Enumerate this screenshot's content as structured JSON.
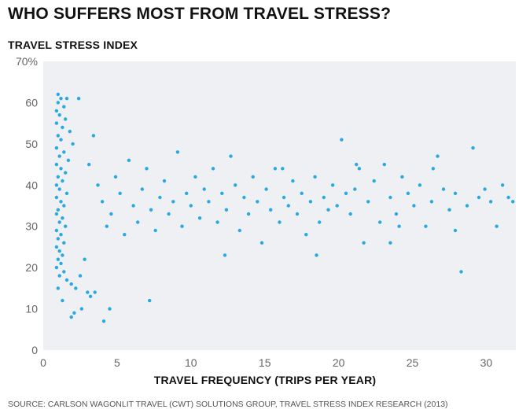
{
  "title": "WHO SUFFERS MOST FROM TRAVEL STRESS?",
  "source": "SOURCE: CARLSON WAGONLIT TRAVEL (CWT) SOLUTIONS GROUP, TRAVEL STRESS INDEX RESEARCH (2013)",
  "chart_data": {
    "type": "scatter",
    "title": "WHO SUFFERS MOST FROM TRAVEL STRESS?",
    "xlabel": "TRAVEL FREQUENCY (TRIPS PER YEAR)",
    "ylabel": "TRAVEL STRESS INDEX",
    "xlim": [
      0,
      32
    ],
    "ylim": [
      0,
      70
    ],
    "x_ticks": [
      "0",
      "5",
      "10",
      "15",
      "20",
      "25",
      "30"
    ],
    "y_ticks": [
      "0",
      "10",
      "20",
      "30",
      "40",
      "50",
      "60",
      "70%"
    ],
    "grid": false,
    "legend": "none",
    "colors": {
      "point": "#29a9e1",
      "plot_background": "#eef0f3"
    },
    "points": [
      [
        1.0,
        62
      ],
      [
        1.2,
        61
      ],
      [
        1.6,
        61
      ],
      [
        2.4,
        61
      ],
      [
        1.0,
        60
      ],
      [
        1.4,
        59
      ],
      [
        0.9,
        58
      ],
      [
        1.1,
        57
      ],
      [
        1.5,
        56
      ],
      [
        0.9,
        55
      ],
      [
        1.3,
        54
      ],
      [
        1.8,
        53
      ],
      [
        1.0,
        52
      ],
      [
        1.2,
        51
      ],
      [
        2.0,
        50
      ],
      [
        0.9,
        49
      ],
      [
        1.4,
        48
      ],
      [
        1.1,
        47
      ],
      [
        1.7,
        46
      ],
      [
        0.9,
        45
      ],
      [
        1.2,
        44
      ],
      [
        1.5,
        43
      ],
      [
        1.0,
        42
      ],
      [
        1.3,
        41
      ],
      [
        0.9,
        40
      ],
      [
        1.1,
        39
      ],
      [
        1.6,
        38
      ],
      [
        0.9,
        37
      ],
      [
        1.2,
        36
      ],
      [
        1.4,
        35
      ],
      [
        1.0,
        34
      ],
      [
        0.9,
        33
      ],
      [
        1.3,
        32
      ],
      [
        1.1,
        31
      ],
      [
        1.5,
        30
      ],
      [
        0.9,
        29
      ],
      [
        1.2,
        28
      ],
      [
        1.0,
        27
      ],
      [
        1.4,
        26
      ],
      [
        0.9,
        25
      ],
      [
        1.1,
        24
      ],
      [
        1.3,
        23
      ],
      [
        1.0,
        22
      ],
      [
        1.2,
        21
      ],
      [
        0.9,
        20
      ],
      [
        1.4,
        19
      ],
      [
        1.1,
        18
      ],
      [
        1.6,
        17
      ],
      [
        1.9,
        16
      ],
      [
        1.0,
        15
      ],
      [
        2.2,
        15
      ],
      [
        2.5,
        18
      ],
      [
        2.8,
        22
      ],
      [
        3.1,
        45
      ],
      [
        3.4,
        52
      ],
      [
        3.7,
        40
      ],
      [
        4.0,
        36
      ],
      [
        4.3,
        30
      ],
      [
        4.6,
        33
      ],
      [
        4.9,
        42
      ],
      [
        5.2,
        38
      ],
      [
        5.5,
        28
      ],
      [
        5.8,
        46
      ],
      [
        6.1,
        35
      ],
      [
        6.4,
        31
      ],
      [
        6.7,
        39
      ],
      [
        7.0,
        44
      ],
      [
        7.3,
        34
      ],
      [
        7.6,
        29
      ],
      [
        7.9,
        37
      ],
      [
        8.2,
        41
      ],
      [
        8.5,
        33
      ],
      [
        8.8,
        36
      ],
      [
        9.1,
        48
      ],
      [
        9.4,
        30
      ],
      [
        9.7,
        38
      ],
      [
        10.0,
        35
      ],
      [
        10.3,
        42
      ],
      [
        10.6,
        32
      ],
      [
        10.9,
        39
      ],
      [
        11.2,
        36
      ],
      [
        11.5,
        44
      ],
      [
        11.8,
        31
      ],
      [
        12.1,
        38
      ],
      [
        12.4,
        34
      ],
      [
        12.7,
        47
      ],
      [
        13.0,
        40
      ],
      [
        13.3,
        29
      ],
      [
        13.6,
        37
      ],
      [
        13.9,
        33
      ],
      [
        14.2,
        42
      ],
      [
        14.5,
        36
      ],
      [
        14.8,
        26
      ],
      [
        15.1,
        39
      ],
      [
        15.4,
        34
      ],
      [
        15.7,
        44
      ],
      [
        16.0,
        31
      ],
      [
        16.3,
        37
      ],
      [
        16.6,
        35
      ],
      [
        16.9,
        41
      ],
      [
        17.2,
        33
      ],
      [
        17.5,
        38
      ],
      [
        17.8,
        28
      ],
      [
        18.1,
        36
      ],
      [
        18.4,
        42
      ],
      [
        18.7,
        31
      ],
      [
        19.0,
        37
      ],
      [
        19.3,
        34
      ],
      [
        19.6,
        40
      ],
      [
        19.9,
        35
      ],
      [
        20.2,
        51
      ],
      [
        20.5,
        38
      ],
      [
        20.8,
        33
      ],
      [
        21.1,
        39
      ],
      [
        21.4,
        44
      ],
      [
        21.7,
        26
      ],
      [
        22.0,
        36
      ],
      [
        22.4,
        41
      ],
      [
        22.8,
        31
      ],
      [
        23.1,
        45
      ],
      [
        23.5,
        37
      ],
      [
        23.9,
        33
      ],
      [
        24.3,
        42
      ],
      [
        24.7,
        38
      ],
      [
        25.1,
        35
      ],
      [
        25.5,
        40
      ],
      [
        25.9,
        30
      ],
      [
        26.3,
        36
      ],
      [
        26.7,
        47
      ],
      [
        27.1,
        39
      ],
      [
        27.5,
        34
      ],
      [
        27.9,
        38
      ],
      [
        28.3,
        19
      ],
      [
        28.7,
        35
      ],
      [
        29.1,
        49
      ],
      [
        29.5,
        37
      ],
      [
        29.9,
        39
      ],
      [
        30.3,
        36
      ],
      [
        30.7,
        30
      ],
      [
        31.1,
        40
      ],
      [
        31.5,
        37
      ],
      [
        31.8,
        36
      ],
      [
        3.0,
        14
      ],
      [
        3.2,
        13
      ],
      [
        3.5,
        14
      ],
      [
        2.6,
        10
      ],
      [
        2.1,
        9
      ],
      [
        1.9,
        8
      ],
      [
        4.1,
        7
      ],
      [
        7.2,
        12
      ],
      [
        4.5,
        10
      ],
      [
        1.3,
        12
      ],
      [
        16.2,
        44
      ],
      [
        18.5,
        23
      ],
      [
        12.3,
        23
      ],
      [
        21.2,
        45
      ],
      [
        24.1,
        30
      ],
      [
        27.9,
        29
      ],
      [
        23.5,
        26
      ],
      [
        26.4,
        44
      ]
    ]
  }
}
